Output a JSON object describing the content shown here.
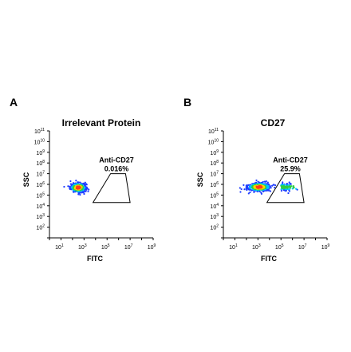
{
  "chart_data": [
    {
      "type": "scatter",
      "panel_letter": "A",
      "title": "Irrelevant Protein",
      "xlabel": "FITC",
      "ylabel": "SSC",
      "x_scale": "log",
      "y_scale": "log",
      "xlim": [
        1,
        1000000000
      ],
      "ylim": [
        10,
        100000000000
      ],
      "x_ticks": [
        {
          "value": 10,
          "base": "10",
          "exp": "1"
        },
        {
          "value": 1000,
          "base": "10",
          "exp": "3"
        },
        {
          "value": 100000,
          "base": "10",
          "exp": "5"
        },
        {
          "value": 10000000,
          "base": "10",
          "exp": "7"
        },
        {
          "value": 1000000000,
          "base": "10",
          "exp": "9"
        }
      ],
      "y_ticks": [
        {
          "value": 100,
          "base": "10",
          "exp": "2"
        },
        {
          "value": 1000,
          "base": "10",
          "exp": "3"
        },
        {
          "value": 10000,
          "base": "10",
          "exp": "4"
        },
        {
          "value": 100000,
          "base": "10",
          "exp": "5"
        },
        {
          "value": 1000000,
          "base": "10",
          "exp": "6"
        },
        {
          "value": 10000000,
          "base": "10",
          "exp": "7"
        },
        {
          "value": 100000000,
          "base": "10",
          "exp": "8"
        },
        {
          "value": 1000000000,
          "base": "10",
          "exp": "9"
        },
        {
          "value": 10000000000,
          "base": "10",
          "exp": "10"
        },
        {
          "value": 100000000000,
          "base": "10",
          "exp": "11"
        }
      ],
      "gate": {
        "label": "Anti-CD27",
        "value": "0.016%",
        "polygon": [
          [
            6000,
            20000
          ],
          [
            10000000,
            20000
          ],
          [
            4000000,
            10000000
          ],
          [
            200000,
            10000000
          ]
        ]
      },
      "population": {
        "center_log": [
          2.5,
          5.7
        ],
        "spread_log": [
          0.35,
          0.22
        ],
        "points": 320,
        "high_fraction_above_gate": 0.0
      }
    },
    {
      "type": "scatter",
      "panel_letter": "B",
      "title": "CD27",
      "xlabel": "FITC",
      "ylabel": "SSC",
      "x_scale": "log",
      "y_scale": "log",
      "xlim": [
        1,
        1000000000
      ],
      "ylim": [
        10,
        100000000000
      ],
      "x_ticks": [
        {
          "value": 10,
          "base": "10",
          "exp": "1"
        },
        {
          "value": 1000,
          "base": "10",
          "exp": "3"
        },
        {
          "value": 100000,
          "base": "10",
          "exp": "5"
        },
        {
          "value": 10000000,
          "base": "10",
          "exp": "7"
        },
        {
          "value": 1000000000,
          "base": "10",
          "exp": "9"
        }
      ],
      "y_ticks": [
        {
          "value": 100,
          "base": "10",
          "exp": "2"
        },
        {
          "value": 1000,
          "base": "10",
          "exp": "3"
        },
        {
          "value": 10000,
          "base": "10",
          "exp": "4"
        },
        {
          "value": 100000,
          "base": "10",
          "exp": "5"
        },
        {
          "value": 1000000,
          "base": "10",
          "exp": "6"
        },
        {
          "value": 10000000,
          "base": "10",
          "exp": "7"
        },
        {
          "value": 100000000,
          "base": "10",
          "exp": "8"
        },
        {
          "value": 1000000000,
          "base": "10",
          "exp": "9"
        },
        {
          "value": 10000000000,
          "base": "10",
          "exp": "10"
        },
        {
          "value": 100000000000,
          "base": "10",
          "exp": "11"
        }
      ],
      "gate": {
        "label": "Anti-CD27",
        "value": "25.9%",
        "polygon": [
          [
            6000,
            20000
          ],
          [
            10000000,
            20000
          ],
          [
            4000000,
            10000000
          ],
          [
            200000,
            10000000
          ]
        ]
      },
      "population": {
        "center_log": [
          3.1,
          5.75
        ],
        "spread_log": [
          0.5,
          0.2
        ],
        "points": 420,
        "high_fraction_above_gate": 0.26
      }
    }
  ],
  "colors": {
    "density_low": "#1e3cff",
    "density_midlow": "#00c8ff",
    "density_mid": "#2ecc40",
    "density_midhigh": "#ffd700",
    "density_high": "#ff3b1e",
    "axis": "#000000",
    "gate": "#000000"
  }
}
